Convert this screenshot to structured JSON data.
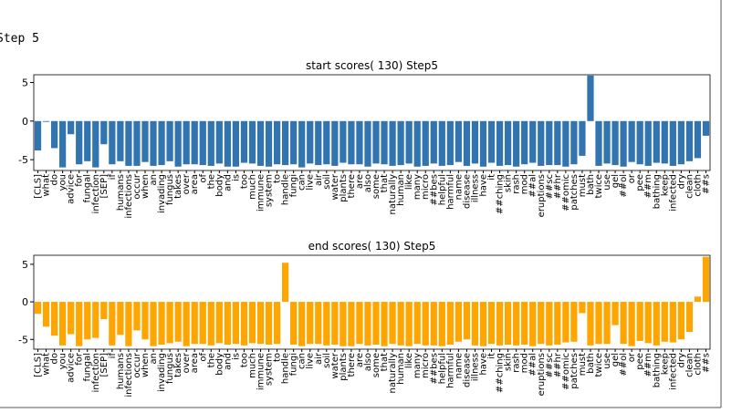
{
  "step_label": "Step  5",
  "chart_data": [
    {
      "type": "bar",
      "title": "start scores( 130) Step5",
      "color": "#3274b0",
      "categories": [
        "[CLS]",
        "what",
        "do",
        "you",
        "advice",
        "for",
        "fungal",
        "infection",
        "[SEP]",
        "if",
        "humans",
        "infections",
        "occur",
        "when",
        "an",
        "invading",
        "fungus",
        "takes",
        "over",
        "area",
        "of",
        "the",
        "body",
        "and",
        "is",
        "too",
        "much",
        "immune",
        "system",
        "to",
        "handle",
        "fungi",
        "can",
        "live",
        "air",
        "soil",
        "water",
        "plants",
        "there",
        "are",
        "also",
        "some",
        "that",
        "naturally",
        "human",
        "like",
        "many",
        "micro",
        "##bes",
        "helpful",
        "harmful",
        "name",
        "disease",
        "illness",
        "have",
        "it",
        "##ching",
        "skin",
        "rash",
        "mod",
        "##al",
        "eruptions",
        "##sc",
        "##hr",
        "##omic",
        "patches",
        "must",
        "bath",
        "twice",
        "use",
        "gel",
        "##ol",
        "or",
        "pee",
        "##m",
        "bathing",
        "keep",
        "infected",
        "dry",
        "clean",
        "cloth",
        "##s"
      ],
      "values": [
        -3.8,
        -0.1,
        -3.5,
        -6.0,
        -1.7,
        -5.6,
        -5.2,
        -6.0,
        -3.0,
        -5.6,
        -5.2,
        -5.8,
        -5.8,
        -5.3,
        -5.8,
        -5.7,
        -5.2,
        -5.9,
        -5.6,
        -5.6,
        -5.7,
        -5.8,
        -5.5,
        -5.9,
        -5.9,
        -5.4,
        -5.5,
        -5.8,
        -5.9,
        -5.6,
        -5.7,
        -5.6,
        -6.0,
        -5.5,
        -5.7,
        -5.6,
        -5.8,
        -5.4,
        -5.6,
        -5.6,
        -5.9,
        -5.5,
        -5.6,
        -5.8,
        -5.7,
        -5.5,
        -5.9,
        -5.8,
        -5.5,
        -5.8,
        -5.7,
        -5.3,
        -5.8,
        -5.5,
        -5.9,
        -5.4,
        -5.8,
        -5.7,
        -5.9,
        -5.6,
        -5.4,
        -5.8,
        -5.7,
        -5.7,
        -5.9,
        -5.6,
        -4.5,
        5.9,
        -5.8,
        -5.5,
        -5.7,
        -5.9,
        -5.3,
        -5.6,
        -5.8,
        -5.4,
        -5.5,
        -5.8,
        -5.6,
        -5.2,
        -4.8,
        -1.9
      ],
      "ylim": [
        -6.4,
        6.0
      ],
      "yticks": [
        -5,
        0,
        5
      ]
    },
    {
      "type": "bar",
      "title": "end scores( 130) Step5",
      "color": "#ffa500",
      "categories": [
        "[CLS]",
        "what",
        "do",
        "you",
        "advice",
        "for",
        "fungal",
        "infection",
        "[SEP]",
        "if",
        "humans",
        "infections",
        "occur",
        "when",
        "an",
        "invading",
        "fungus",
        "takes",
        "over",
        "area",
        "of",
        "the",
        "body",
        "and",
        "is",
        "too",
        "much",
        "immune",
        "system",
        "to",
        "handle",
        "fungi",
        "can",
        "live",
        "air",
        "soil",
        "water",
        "plants",
        "there",
        "are",
        "also",
        "some",
        "that",
        "naturally",
        "human",
        "like",
        "many",
        "micro",
        "##bes",
        "helpful",
        "harmful",
        "name",
        "disease",
        "illness",
        "have",
        "it",
        "##ching",
        "skin",
        "rash",
        "mod",
        "##al",
        "eruptions",
        "##sc",
        "##hr",
        "##omic",
        "patches",
        "must",
        "bath",
        "twice",
        "use",
        "gel",
        "##ol",
        "or",
        "pee",
        "##m",
        "bathing",
        "keep",
        "infected",
        "dry",
        "clean",
        "cloth",
        "##s"
      ],
      "values": [
        -1.6,
        -3.3,
        -4.5,
        -5.8,
        -4.3,
        -5.9,
        -5.0,
        -4.8,
        -2.3,
        -5.8,
        -4.4,
        -5.9,
        -3.8,
        -5.0,
        -5.9,
        -5.7,
        -5.5,
        -5.3,
        -5.9,
        -5.6,
        -5.6,
        -5.8,
        -5.5,
        -5.7,
        -5.6,
        -5.8,
        -5.5,
        -5.6,
        -5.7,
        -5.6,
        5.2,
        -5.7,
        -5.9,
        -5.6,
        -5.6,
        -5.8,
        -5.7,
        -5.9,
        -5.9,
        -5.6,
        -5.8,
        -5.7,
        -5.9,
        -5.6,
        -5.8,
        -5.9,
        -5.6,
        -5.8,
        -5.8,
        -5.9,
        -5.7,
        -5.3,
        -5.0,
        -5.8,
        -5.9,
        -5.6,
        -5.8,
        -5.7,
        -5.8,
        -5.7,
        -5.9,
        -5.6,
        -5.8,
        -5.7,
        -5.4,
        -5.3,
        -1.5,
        -5.8,
        -5.6,
        -5.6,
        -3.1,
        -5.6,
        -5.9,
        -5.2,
        -5.5,
        -5.8,
        -5.3,
        -5.4,
        -5.0,
        -4.0,
        0.7,
        6.0
      ],
      "ylim": [
        -6.3,
        6.2
      ],
      "yticks": [
        -5,
        0,
        5
      ]
    }
  ]
}
